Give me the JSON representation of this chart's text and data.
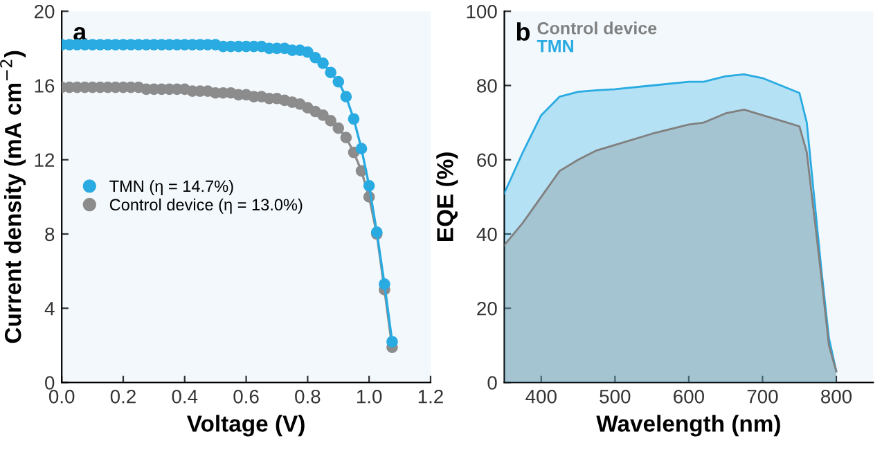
{
  "chart_data": [
    {
      "type": "line",
      "xlabel": "Voltage (V)",
      "ylabel": "Current density (mA cm$^{−2}$)",
      "annotations": [
        "a"
      ],
      "legend": "center left",
      "marker": "circle",
      "xlim": [
        0,
        1.2
      ],
      "ylim": [
        0,
        20
      ],
      "xticks": [
        {
          "value": 0,
          "label": "0.0"
        },
        0.2,
        0.4,
        0.6,
        0.8,
        {
          "value": 1.0,
          "label": "1.0"
        },
        1.2
      ],
      "yticks": [
        0,
        4,
        8,
        12,
        16,
        20
      ],
      "x": [
        0,
        0.025,
        0.05,
        0.075,
        0.1,
        0.125,
        0.15,
        0.175,
        0.2,
        0.225,
        0.25,
        0.275,
        0.3,
        0.325,
        0.35,
        0.375,
        0.4,
        0.425,
        0.45,
        0.475,
        0.5,
        0.525,
        0.55,
        0.575,
        0.6,
        0.625,
        0.65,
        0.675,
        0.7,
        0.725,
        0.75,
        0.775,
        0.8,
        0.825,
        0.85,
        0.875,
        0.9,
        0.925,
        0.95,
        0.975,
        1.0,
        1.025,
        1.05,
        1.075
      ],
      "series": [
        {
          "name": "TMN (η = 14.7%)",
          "color": "#29abe2",
          "values": [
            18.2,
            18.2,
            18.2,
            18.2,
            18.2,
            18.2,
            18.2,
            18.2,
            18.2,
            18.2,
            18.2,
            18.2,
            18.2,
            18.2,
            18.2,
            18.2,
            18.2,
            18.2,
            18.2,
            18.2,
            18.2,
            18.1,
            18.1,
            18.1,
            18.1,
            18.1,
            18.1,
            18.0,
            18.0,
            18.0,
            17.9,
            17.9,
            17.8,
            17.5,
            17.2,
            16.7,
            16.2,
            15.4,
            14.2,
            12.6,
            10.6,
            8.1,
            5.3,
            2.2
          ]
        },
        {
          "name": "Control device (η = 13.0%)",
          "color": "#8c8c8c",
          "values": [
            15.9,
            15.9,
            15.9,
            15.9,
            15.9,
            15.9,
            15.9,
            15.9,
            15.9,
            15.9,
            15.9,
            15.8,
            15.8,
            15.8,
            15.8,
            15.8,
            15.8,
            15.7,
            15.7,
            15.7,
            15.6,
            15.6,
            15.6,
            15.5,
            15.5,
            15.4,
            15.4,
            15.3,
            15.3,
            15.2,
            15.1,
            15.0,
            14.8,
            14.6,
            14.4,
            14.1,
            13.7,
            13.2,
            12.4,
            11.4,
            10.0,
            8.0,
            5.0,
            1.9
          ]
        }
      ]
    },
    {
      "type": "area",
      "xlabel": "Wavelength (nm)",
      "ylabel": "EQE (%)",
      "annotations": [
        "b"
      ],
      "legend": "top left",
      "xlim": [
        350,
        850
      ],
      "ylim": [
        0,
        100
      ],
      "xticks": [
        400,
        500,
        600,
        700,
        800
      ],
      "yticks": [
        0,
        20,
        40,
        60,
        80,
        100
      ],
      "x": [
        350,
        375,
        400,
        425,
        450,
        475,
        500,
        550,
        600,
        620,
        650,
        675,
        700,
        725,
        750,
        760,
        770,
        780,
        790,
        800
      ],
      "series": [
        {
          "name": "Control device",
          "color": "#808080",
          "values": [
            37,
            43,
            50,
            57,
            60,
            62.5,
            64,
            67,
            69.5,
            70,
            72.5,
            73.5,
            72,
            70.5,
            69,
            62,
            45,
            28,
            10,
            3
          ]
        },
        {
          "name": "TMN",
          "color": "#29abe2",
          "values": [
            51,
            62,
            72,
            77,
            78.3,
            78.7,
            79,
            80,
            81,
            81,
            82.5,
            83,
            82,
            80,
            78,
            70,
            50,
            30,
            12,
            3
          ]
        }
      ]
    }
  ]
}
